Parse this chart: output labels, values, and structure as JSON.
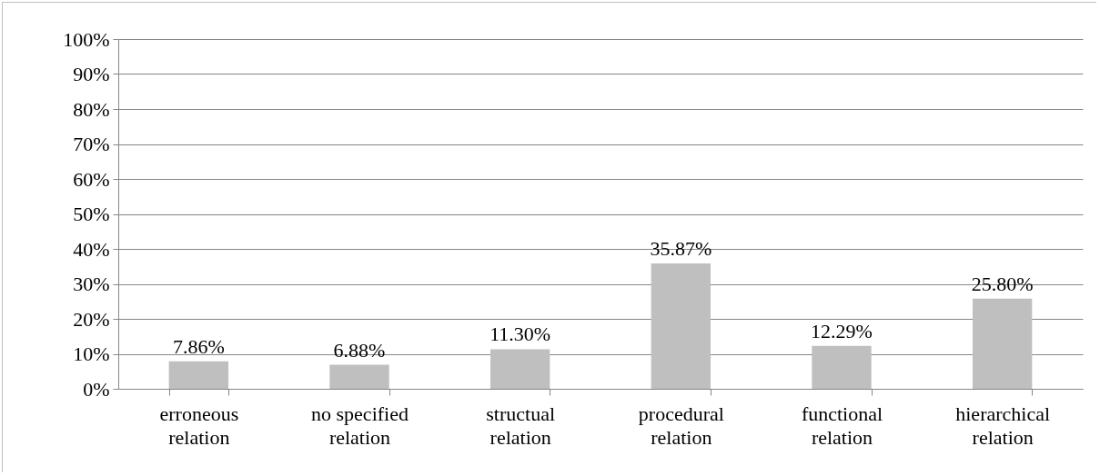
{
  "chart_data": {
    "type": "bar",
    "categories": [
      "erroneous relation",
      "no specified relation",
      "structual relation",
      "procedural relation",
      "functional relation",
      "hierarchical relation"
    ],
    "values": [
      7.86,
      6.88,
      11.3,
      35.87,
      12.29,
      25.8
    ],
    "value_labels": [
      "7.86%",
      "6.88%",
      "11.30%",
      "35.87%",
      "12.29%",
      "25.80%"
    ],
    "color": "#bfbfbf",
    "ylim": [
      0,
      100
    ],
    "yticks": [
      {
        "value": 0,
        "label": "0%"
      },
      {
        "value": 10,
        "label": "10%"
      },
      {
        "value": 20,
        "label": "20%"
      },
      {
        "value": 30,
        "label": "30%"
      },
      {
        "value": 40,
        "label": "40%"
      },
      {
        "value": 50,
        "label": "50%"
      },
      {
        "value": 60,
        "label": "60%"
      },
      {
        "value": 70,
        "label": "70%"
      },
      {
        "value": 80,
        "label": "80%"
      },
      {
        "value": 90,
        "label": "90%"
      },
      {
        "value": 100,
        "label": "100%"
      }
    ],
    "grid": "y"
  }
}
